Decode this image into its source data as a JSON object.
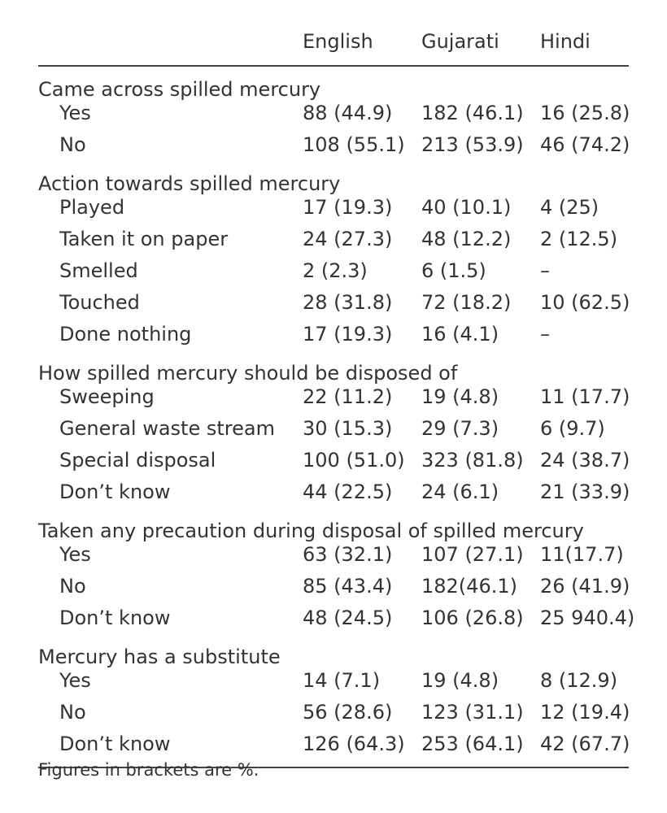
{
  "table": {
    "columns": [
      "English",
      "Gujarati",
      "Hindi"
    ],
    "sections": [
      {
        "title": "Came across spilled mercury",
        "rows": [
          {
            "label": "Yes",
            "values": [
              "88 (44.9)",
              "182 (46.1)",
              "16 (25.8)"
            ]
          },
          {
            "label": "No",
            "values": [
              "108 (55.1)",
              "213 (53.9)",
              "46 (74.2)"
            ]
          }
        ]
      },
      {
        "title": "Action towards spilled mercury",
        "rows": [
          {
            "label": "Played",
            "values": [
              "17 (19.3)",
              "40 (10.1)",
              "4 (25)"
            ]
          },
          {
            "label": "Taken it on paper",
            "values": [
              "24 (27.3)",
              "48 (12.2)",
              "2 (12.5)"
            ]
          },
          {
            "label": "Smelled",
            "values": [
              "2 (2.3)",
              "6 (1.5)",
              "–"
            ]
          },
          {
            "label": "Touched",
            "values": [
              "28 (31.8)",
              "72 (18.2)",
              "10 (62.5)"
            ]
          },
          {
            "label": "Done nothing",
            "values": [
              "17 (19.3)",
              "16 (4.1)",
              "–"
            ]
          }
        ]
      },
      {
        "title": "How spilled mercury should be disposed of",
        "rows": [
          {
            "label": "Sweeping",
            "values": [
              "22 (11.2)",
              "19 (4.8)",
              "11 (17.7)"
            ]
          },
          {
            "label": "General waste stream",
            "values": [
              "30 (15.3)",
              "29 (7.3)",
              "6 (9.7)"
            ]
          },
          {
            "label": "Special disposal",
            "values": [
              "100 (51.0)",
              "323 (81.8)",
              "24 (38.7)"
            ]
          },
          {
            "label": "Don’t know",
            "values": [
              "44 (22.5)",
              "24 (6.1)",
              "21 (33.9)"
            ]
          }
        ]
      },
      {
        "title": "Taken any precaution during disposal of spilled mercury",
        "rows": [
          {
            "label": "Yes",
            "values": [
              "63 (32.1)",
              "107 (27.1)",
              "11(17.7)"
            ]
          },
          {
            "label": "No",
            "values": [
              "85 (43.4)",
              "182(46.1)",
              "26 (41.9)"
            ]
          },
          {
            "label": "Don’t know",
            "values": [
              "48 (24.5)",
              "106 (26.8)",
              "25 940.4)"
            ]
          }
        ]
      },
      {
        "title": "Mercury has a substitute",
        "rows": [
          {
            "label": "Yes",
            "values": [
              "14 (7.1)",
              "19 (4.8)",
              "8 (12.9)"
            ]
          },
          {
            "label": "No",
            "values": [
              "56 (28.6)",
              "123 (31.1)",
              "12 (19.4)"
            ]
          },
          {
            "label": "Don’t know",
            "values": [
              "126 (64.3)",
              "253 (64.1)",
              "42 (67.7)"
            ]
          }
        ]
      }
    ]
  },
  "footnote": "Figures in brackets are %."
}
